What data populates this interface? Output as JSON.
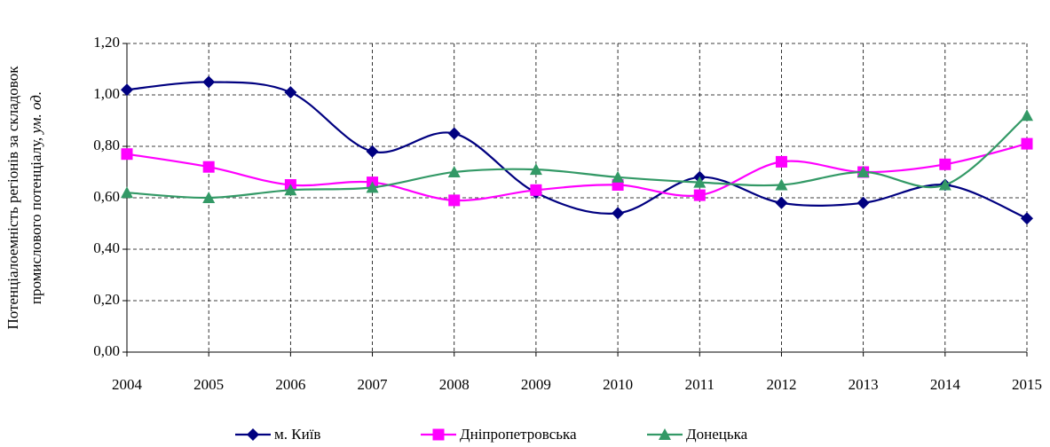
{
  "chart_data": {
    "type": "line",
    "y_label": {
      "line1": "Потенціалоемність регіонів за складовок",
      "line2": "промислового потенціалу, ",
      "line2_italic": "ум. од."
    },
    "x": [
      2004,
      2005,
      2006,
      2007,
      2008,
      2009,
      2010,
      2011,
      2012,
      2013,
      2014,
      2015
    ],
    "xlim": [
      2004,
      2015
    ],
    "xticks": [
      2004,
      2005,
      2006,
      2007,
      2008,
      2009,
      2010,
      2011,
      2012,
      2013,
      2014,
      2015
    ],
    "ylim": [
      0,
      1.2
    ],
    "yticks": [
      {
        "value": 0,
        "label": "0,00"
      },
      {
        "value": 0.2,
        "label": "0,20"
      },
      {
        "value": 0.4,
        "label": "0,40"
      },
      {
        "value": 0.6,
        "label": "0,60"
      },
      {
        "value": 0.8,
        "label": "0,80"
      },
      {
        "value": 1.0,
        "label": "1,00"
      },
      {
        "value": 1.2,
        "label": "1,20"
      }
    ],
    "grid": true,
    "legend": "bottom",
    "series": [
      {
        "name": "м. Київ",
        "color": "#000080",
        "marker": "diamond",
        "values": [
          1.02,
          1.05,
          1.01,
          0.78,
          0.85,
          0.62,
          0.54,
          0.68,
          0.58,
          0.58,
          0.65,
          0.52
        ]
      },
      {
        "name": "Дніпропетровська",
        "color": "#ff00ff",
        "marker": "square",
        "values": [
          0.77,
          0.72,
          0.65,
          0.66,
          0.59,
          0.63,
          0.65,
          0.61,
          0.74,
          0.7,
          0.73,
          0.81
        ]
      },
      {
        "name": "Донецька",
        "color": "#339966",
        "marker": "triangle",
        "values": [
          0.62,
          0.6,
          0.63,
          0.64,
          0.7,
          0.71,
          0.68,
          0.66,
          0.65,
          0.7,
          0.65,
          0.92
        ]
      }
    ]
  }
}
